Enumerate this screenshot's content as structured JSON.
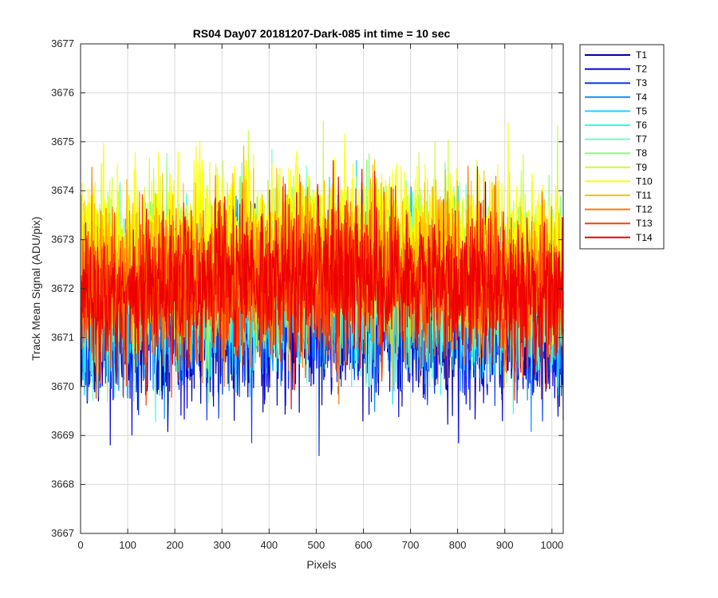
{
  "chart_data": {
    "type": "line",
    "title": "RS04 Day07 20181207-Dark-085 int time = 10 sec",
    "xlabel": "Pixels",
    "ylabel": "Track Mean Signal (ADU/pix)",
    "xlim": [
      0,
      1024
    ],
    "ylim": [
      3667,
      3677
    ],
    "xticks": [
      0,
      100,
      200,
      300,
      400,
      500,
      600,
      700,
      800,
      900,
      1000
    ],
    "yticks": [
      3667,
      3668,
      3669,
      3670,
      3671,
      3672,
      3673,
      3674,
      3675,
      3676,
      3677
    ],
    "grid": true,
    "legend_position": "outside-top-right",
    "n_points": 1024,
    "series": [
      {
        "name": "T1",
        "color": "#0000a8",
        "mean": 3671.2,
        "noise": 0.75
      },
      {
        "name": "T2",
        "color": "#0000e0",
        "mean": 3671.3,
        "noise": 0.75
      },
      {
        "name": "T3",
        "color": "#0a3cf0",
        "mean": 3671.4,
        "noise": 0.75
      },
      {
        "name": "T4",
        "color": "#0f8cff",
        "mean": 3671.6,
        "noise": 0.75
      },
      {
        "name": "T5",
        "color": "#19d7ff",
        "mean": 3671.7,
        "noise": 0.75
      },
      {
        "name": "T6",
        "color": "#28ffec",
        "mean": 3671.8,
        "noise": 0.75
      },
      {
        "name": "T7",
        "color": "#6dffc0",
        "mean": 3672.0,
        "noise": 0.75
      },
      {
        "name": "T8",
        "color": "#8cff78",
        "mean": 3672.3,
        "noise": 0.75
      },
      {
        "name": "T9",
        "color": "#c8ff3c",
        "mean": 3672.7,
        "noise": 0.75
      },
      {
        "name": "T10",
        "color": "#ffff00",
        "mean": 3673.0,
        "noise": 0.75
      },
      {
        "name": "T11",
        "color": "#ffc000",
        "mean": 3672.5,
        "noise": 0.75
      },
      {
        "name": "T12",
        "color": "#ff7800",
        "mean": 3672.1,
        "noise": 0.75
      },
      {
        "name": "T13",
        "color": "#ff3c00",
        "mean": 3671.9,
        "noise": 0.75
      },
      {
        "name": "T14",
        "color": "#ee0000",
        "mean": 3672.0,
        "noise": 0.75
      }
    ]
  }
}
